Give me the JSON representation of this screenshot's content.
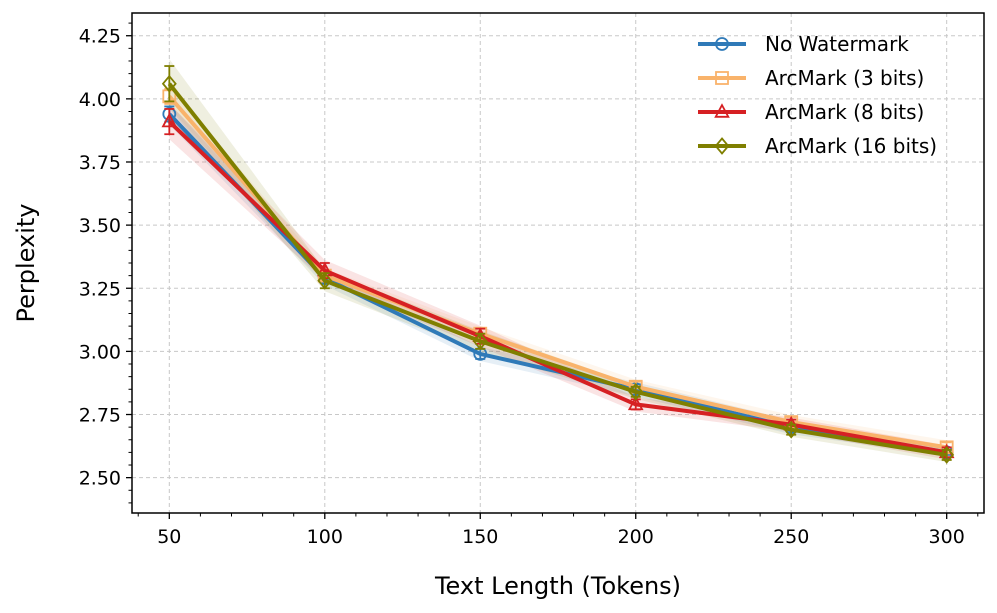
{
  "chart_data": {
    "type": "line",
    "xlabel": "Text Length (Tokens)",
    "ylabel": "Perplexity",
    "x": [
      50,
      100,
      150,
      200,
      250,
      300
    ],
    "xlim": [
      38,
      312
    ],
    "ylim": [
      2.36,
      4.34
    ],
    "xticks": [
      "50",
      "100",
      "150",
      "200",
      "250",
      "300"
    ],
    "yticks": [
      "2.50",
      "2.75",
      "3.00",
      "3.25",
      "3.50",
      "3.75",
      "4.00",
      "4.25"
    ],
    "grid": true,
    "legend_position": "top-right",
    "series": [
      {
        "name": "No Watermark",
        "color": "#2f7ab8",
        "marker": "circle",
        "values": [
          3.94,
          3.29,
          2.99,
          2.85,
          2.7,
          2.6
        ],
        "errors": [
          0.03,
          0.02,
          0.02,
          0.02,
          0.02,
          0.01
        ]
      },
      {
        "name": "ArcMark (3 bits)",
        "color": "#f9b36b",
        "marker": "square",
        "values": [
          4.01,
          3.3,
          3.07,
          2.86,
          2.72,
          2.62
        ],
        "errors": [
          0.03,
          0.02,
          0.02,
          0.02,
          0.02,
          0.02
        ]
      },
      {
        "name": "ArcMark (8 bits)",
        "color": "#d62023",
        "marker": "triangle",
        "values": [
          3.91,
          3.32,
          3.06,
          2.79,
          2.71,
          2.6
        ],
        "errors": [
          0.05,
          0.03,
          0.03,
          0.02,
          0.02,
          0.02
        ]
      },
      {
        "name": "ArcMark (16 bits)",
        "color": "#7f7f00",
        "marker": "diamond",
        "values": [
          4.06,
          3.28,
          3.04,
          2.84,
          2.69,
          2.59
        ],
        "errors": [
          0.07,
          0.03,
          0.03,
          0.02,
          0.02,
          0.02
        ]
      }
    ]
  }
}
